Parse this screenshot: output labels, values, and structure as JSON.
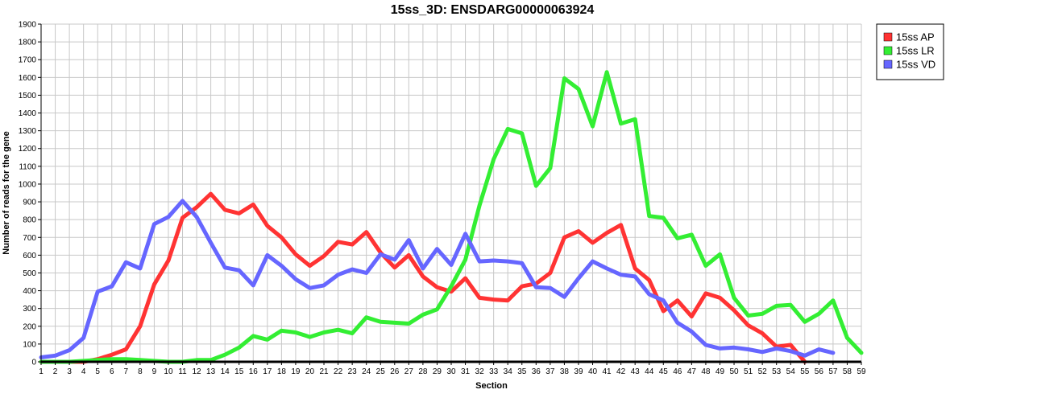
{
  "chart_data": {
    "type": "line",
    "title": "15ss_3D: ENSDARG00000063924",
    "xlabel": "Section",
    "ylabel": "Number of reads for the gene",
    "xlim": [
      1,
      59
    ],
    "ylim": [
      0,
      1900
    ],
    "ytick_step": 100,
    "grid": true,
    "legend_position": "top-right-outside",
    "series": [
      {
        "name": "15ss AP",
        "color": "#ff3333",
        "x": [
          1,
          2,
          3,
          4,
          5,
          6,
          7,
          8,
          9,
          10,
          11,
          12,
          13,
          14,
          15,
          16,
          17,
          18,
          19,
          20,
          21,
          22,
          23,
          24,
          25,
          26,
          27,
          28,
          29,
          30,
          31,
          32,
          33,
          34,
          35,
          36,
          37,
          38,
          39,
          40,
          41,
          42,
          43,
          44,
          45,
          46,
          47,
          48,
          49,
          50,
          51,
          52,
          53,
          54,
          55
        ],
        "values": [
          0,
          0,
          0,
          0,
          15,
          40,
          70,
          200,
          435,
          570,
          810,
          870,
          945,
          855,
          835,
          885,
          765,
          700,
          605,
          540,
          595,
          675,
          660,
          730,
          615,
          530,
          600,
          480,
          420,
          395,
          470,
          360,
          350,
          345,
          425,
          440,
          500,
          700,
          735,
          670,
          725,
          770,
          525,
          460,
          285,
          345,
          255,
          385,
          360,
          290,
          205,
          160,
          85,
          95,
          0
        ]
      },
      {
        "name": "15ss LR",
        "color": "#33ee33",
        "x": [
          1,
          2,
          3,
          4,
          5,
          6,
          7,
          8,
          9,
          10,
          11,
          12,
          13,
          14,
          15,
          16,
          17,
          18,
          19,
          20,
          21,
          22,
          23,
          24,
          25,
          26,
          27,
          28,
          29,
          30,
          31,
          32,
          33,
          34,
          35,
          36,
          37,
          38,
          39,
          40,
          41,
          42,
          43,
          44,
          45,
          46,
          47,
          48,
          49,
          50,
          51,
          52,
          53,
          54,
          55,
          56,
          57,
          58,
          59
        ],
        "values": [
          0,
          0,
          0,
          5,
          10,
          15,
          15,
          10,
          5,
          0,
          0,
          10,
          10,
          40,
          80,
          145,
          125,
          175,
          165,
          140,
          165,
          180,
          160,
          250,
          225,
          220,
          215,
          265,
          295,
          425,
          575,
          880,
          1140,
          1310,
          1285,
          990,
          1090,
          1595,
          1535,
          1325,
          1630,
          1340,
          1365,
          820,
          810,
          695,
          715,
          540,
          605,
          360,
          260,
          270,
          315,
          320,
          225,
          270,
          345,
          135,
          50
        ]
      },
      {
        "name": "15ss VD",
        "color": "#6666ff",
        "x": [
          1,
          2,
          3,
          4,
          5,
          6,
          7,
          8,
          9,
          10,
          11,
          12,
          13,
          14,
          15,
          16,
          17,
          18,
          19,
          20,
          21,
          22,
          23,
          24,
          25,
          26,
          27,
          28,
          29,
          30,
          31,
          32,
          33,
          34,
          35,
          36,
          37,
          38,
          39,
          40,
          41,
          42,
          43,
          44,
          45,
          46,
          47,
          48,
          49,
          50,
          51,
          52,
          53,
          54,
          55,
          56,
          57
        ],
        "values": [
          25,
          35,
          65,
          135,
          395,
          425,
          560,
          525,
          775,
          815,
          905,
          815,
          670,
          530,
          515,
          430,
          600,
          540,
          465,
          415,
          430,
          490,
          520,
          500,
          605,
          575,
          685,
          525,
          635,
          545,
          720,
          565,
          570,
          565,
          555,
          420,
          415,
          365,
          470,
          565,
          525,
          490,
          480,
          380,
          345,
          220,
          170,
          95,
          75,
          80,
          70,
          55,
          75,
          60,
          35,
          70,
          50
        ]
      }
    ]
  }
}
